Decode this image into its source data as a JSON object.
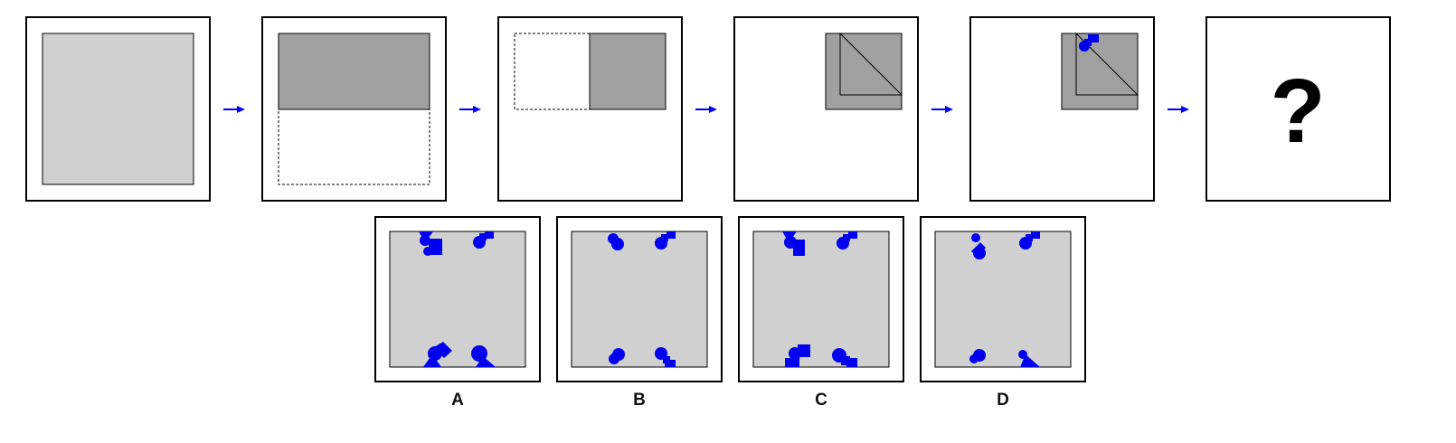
{
  "question_mark": "?",
  "options": [
    {
      "label": "A"
    },
    {
      "label": "B"
    },
    {
      "label": "C"
    },
    {
      "label": "D"
    }
  ],
  "colors": {
    "paper": "#d0d0d0",
    "folded_paper": "#a0a0a0",
    "punch": "#0000ee",
    "arrow": "#0000ff",
    "frame": "#000000"
  }
}
